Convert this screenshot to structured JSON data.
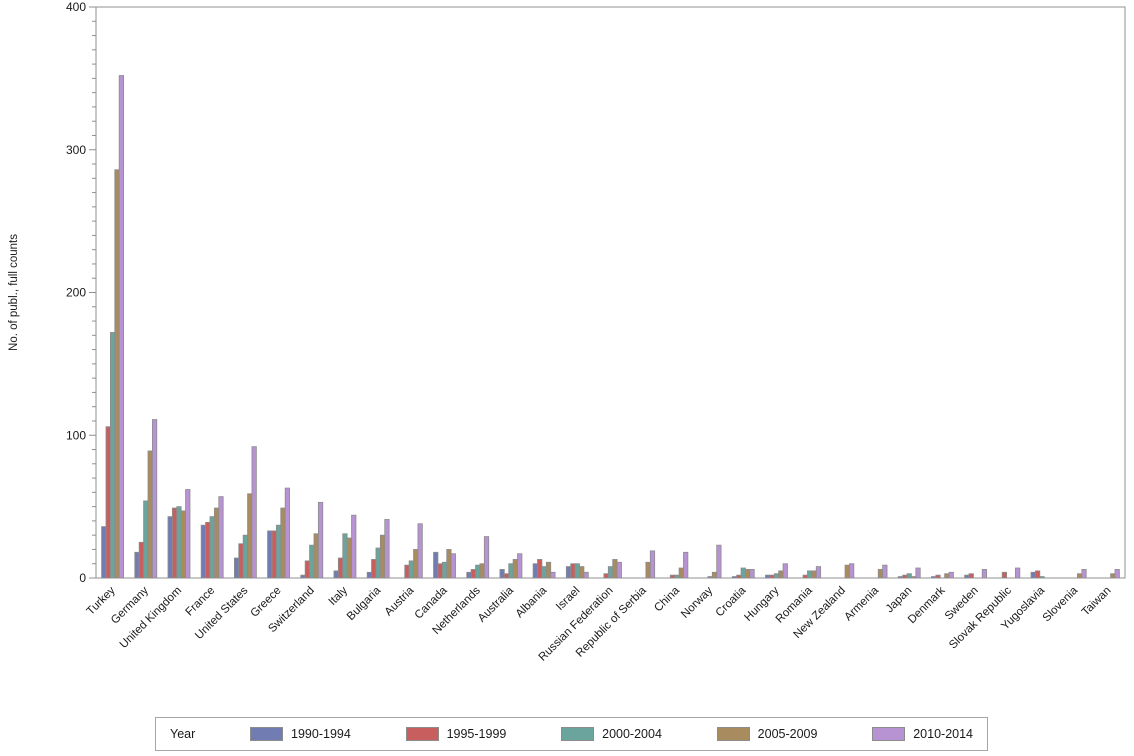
{
  "chart_data": {
    "type": "bar",
    "title": "",
    "xlabel": "",
    "ylabel": "No. of publ., full counts",
    "ylim": [
      0,
      400
    ],
    "yticks": [
      0,
      100,
      200,
      300,
      400
    ],
    "minor_tick_step": 10,
    "grid": false,
    "legend_position": "bottom",
    "legend_title": "Year",
    "categories": [
      "Turkey",
      "Germany",
      "United Kingdom",
      "France",
      "United States",
      "Greece",
      "Switzerland",
      "Italy",
      "Bulgaria",
      "Austria",
      "Canada",
      "Netherlands",
      "Australia",
      "Albania",
      "Israel",
      "Russian Federation",
      "Republic of Serbia",
      "China",
      "Norway",
      "Croatia",
      "Hungary",
      "Romania",
      "New Zealand",
      "Armenia",
      "Japan",
      "Denmark",
      "Sweden",
      "Slovak Republic",
      "Yugoslavia",
      "Slovenia",
      "Taiwan"
    ],
    "series": [
      {
        "name": "1990-1994",
        "color": "#717db2",
        "values": [
          36,
          18,
          43,
          37,
          14,
          33,
          2,
          5,
          4,
          0,
          18,
          4,
          6,
          10,
          8,
          0,
          0,
          0,
          0,
          1,
          2,
          0,
          0,
          0,
          1,
          1,
          2,
          0,
          4,
          0,
          0
        ]
      },
      {
        "name": "1995-1999",
        "color": "#c85f5e",
        "values": [
          106,
          25,
          49,
          39,
          24,
          33,
          12,
          14,
          13,
          9,
          10,
          6,
          3,
          13,
          10,
          3,
          0,
          2,
          0,
          2,
          2,
          2,
          0,
          0,
          2,
          2,
          3,
          4,
          5,
          0,
          0
        ]
      },
      {
        "name": "2000-2004",
        "color": "#6ba49d",
        "values": [
          172,
          54,
          50,
          43,
          30,
          37,
          23,
          31,
          21,
          12,
          11,
          9,
          10,
          8,
          10,
          8,
          0,
          2,
          1,
          7,
          3,
          5,
          0,
          0,
          3,
          0,
          0,
          0,
          1,
          0,
          0
        ]
      },
      {
        "name": "2005-2009",
        "color": "#a98b60",
        "values": [
          286,
          89,
          47,
          49,
          59,
          49,
          31,
          28,
          30,
          20,
          20,
          10,
          13,
          11,
          8,
          13,
          11,
          7,
          4,
          6,
          5,
          5,
          9,
          6,
          1,
          3,
          0,
          0,
          0,
          3,
          3
        ]
      },
      {
        "name": "2010-2014",
        "color": "#b893d3",
        "values": [
          352,
          111,
          62,
          57,
          92,
          63,
          53,
          44,
          41,
          38,
          17,
          29,
          17,
          4,
          4,
          11,
          19,
          18,
          23,
          6,
          10,
          8,
          10,
          9,
          7,
          4,
          6,
          7,
          0,
          6,
          6
        ]
      }
    ],
    "frame_color": "#909090",
    "bar_outline_color": "#8c8c8c"
  }
}
